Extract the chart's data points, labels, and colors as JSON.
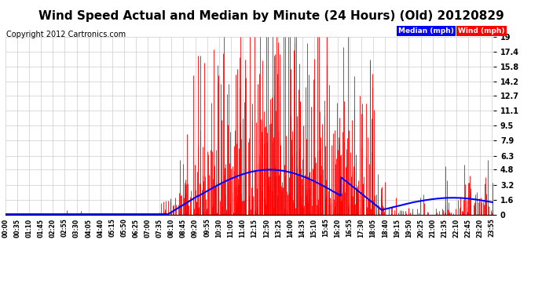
{
  "title": "Wind Speed Actual and Median by Minute (24 Hours) (Old) 20120829",
  "copyright": "Copyright 2012 Cartronics.com",
  "yticks": [
    0.0,
    1.6,
    3.2,
    4.8,
    6.3,
    7.9,
    9.5,
    11.1,
    12.7,
    14.2,
    15.8,
    17.4,
    19.0
  ],
  "ylim": [
    0.0,
    19.0
  ],
  "wind_color": "#ff0000",
  "median_color": "#0000ff",
  "background_color": "#ffffff",
  "grid_color": "#cccccc",
  "legend_median_bg": "#0000ff",
  "legend_wind_bg": "#ff0000",
  "title_fontsize": 11,
  "copyright_fontsize": 7,
  "xtick_step_minutes": 35
}
